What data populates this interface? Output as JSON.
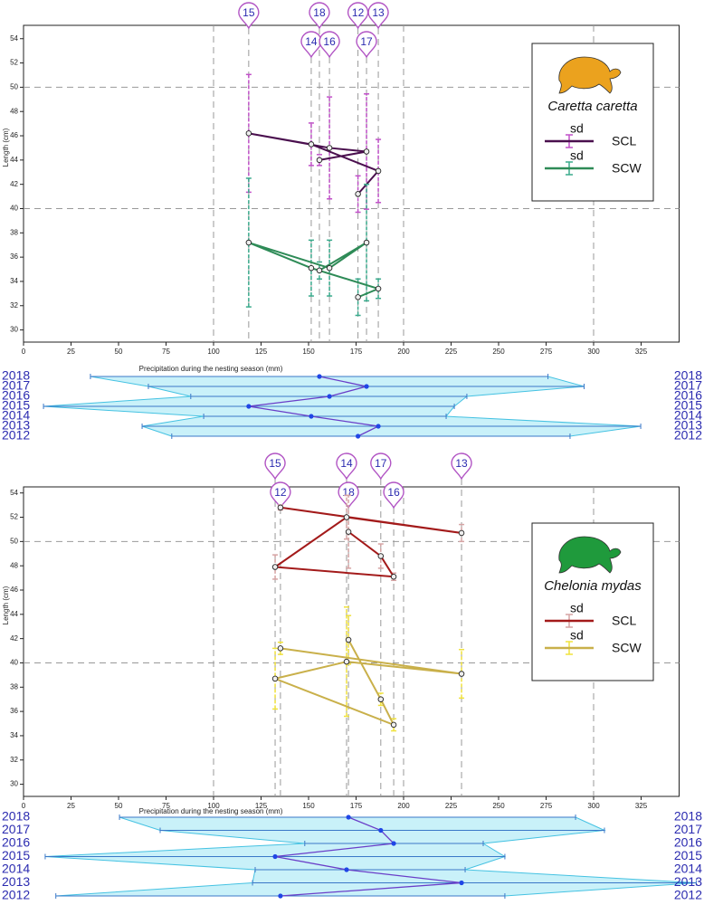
{
  "chart_data": [
    {
      "type": "line",
      "title": "Caretta caretta",
      "icon_color": "#eba21e",
      "x_label": "Precipitation during the nesting season (mm)",
      "y_label": "Length (cm)",
      "xlim": [
        0,
        345
      ],
      "ylim": [
        29,
        55.1
      ],
      "xticks": [
        0,
        25,
        50,
        75,
        100,
        125,
        150,
        175,
        200,
        225,
        250,
        275,
        300,
        325
      ],
      "yticks": [
        30,
        32,
        34,
        36,
        38,
        40,
        42,
        44,
        46,
        48,
        50,
        52,
        54
      ],
      "xgrid": [
        100,
        200,
        300
      ],
      "ygrid": [
        40,
        50
      ],
      "years": [
        "2012",
        "2013",
        "2014",
        "2015",
        "2016",
        "2017",
        "2018"
      ],
      "pin_labels": [
        "12",
        "13",
        "14",
        "15",
        "16",
        "17",
        "18"
      ],
      "x": [
        176,
        186.7,
        151.4,
        118.5,
        161,
        180.5,
        155.7
      ],
      "precip_low": [
        78,
        62.4,
        94.8,
        10.5,
        88,
        65.7,
        35.2
      ],
      "precip_high": [
        287.6,
        324.8,
        222.4,
        226.7,
        233.3,
        295,
        276
      ],
      "series": [
        {
          "name": "SCL",
          "color": "#4a0f4e",
          "error_color": "#c050c8",
          "error_label": "sd",
          "values": [
            41.2,
            43.1,
            45.3,
            46.2,
            45.0,
            44.7,
            44.0
          ],
          "errors": [
            1.5,
            2.6,
            1.75,
            4.85,
            4.2,
            4.75,
            0.45
          ]
        },
        {
          "name": "SCW",
          "color": "#2e8b57",
          "error_color": "#3aaa8c",
          "error_label": "sd",
          "values": [
            32.7,
            33.4,
            35.1,
            37.2,
            35.1,
            37.2,
            34.9
          ],
          "errors": [
            1.5,
            0.8,
            2.3,
            5.3,
            2.3,
            4.8,
            0.7
          ]
        }
      ]
    },
    {
      "type": "line",
      "title": "Chelonia mydas",
      "icon_color": "#1f9a3c",
      "x_label": "Precipitation during the nesting season (mm)",
      "y_label": "Length (cm)",
      "xlim": [
        0,
        345
      ],
      "ylim": [
        29,
        54.5
      ],
      "xticks": [
        0,
        25,
        50,
        75,
        100,
        125,
        150,
        175,
        200,
        225,
        250,
        275,
        300,
        325
      ],
      "yticks": [
        30,
        32,
        34,
        36,
        38,
        40,
        42,
        44,
        46,
        48,
        50,
        52,
        54
      ],
      "xgrid": [
        100,
        200,
        300
      ],
      "ygrid": [
        40,
        50
      ],
      "years": [
        "2012",
        "2013",
        "2014",
        "2015",
        "2016",
        "2017",
        "2018"
      ],
      "pin_labels": [
        "12",
        "13",
        "14",
        "15",
        "16",
        "17",
        "18"
      ],
      "x": [
        135.2,
        230.5,
        170,
        132.4,
        194.8,
        188,
        171
      ],
      "precip_low": [
        17,
        120.5,
        121.9,
        11.4,
        148,
        71.9,
        50.5
      ],
      "precip_high": [
        253.3,
        354,
        232.4,
        253.3,
        241.9,
        305.7,
        290.5
      ],
      "series": [
        {
          "name": "SCL",
          "color": "#a31a1a",
          "error_color": "#d6a4a4",
          "error_label": "sd",
          "values": [
            52.8,
            50.7,
            52.0,
            47.9,
            47.1,
            48.8,
            50.8
          ],
          "errors": [
            0.2,
            0.7,
            1.8,
            1.0,
            0.3,
            1.0,
            3.0
          ]
        },
        {
          "name": "SCW",
          "color": "#c9b04a",
          "error_color": "#f0e23c",
          "error_label": "sd",
          "values": [
            41.2,
            39.1,
            40.1,
            38.7,
            34.9,
            37.0,
            41.9
          ],
          "errors": [
            0.5,
            2.0,
            4.5,
            2.5,
            0.5,
            0.5,
            2.0
          ]
        }
      ]
    }
  ]
}
